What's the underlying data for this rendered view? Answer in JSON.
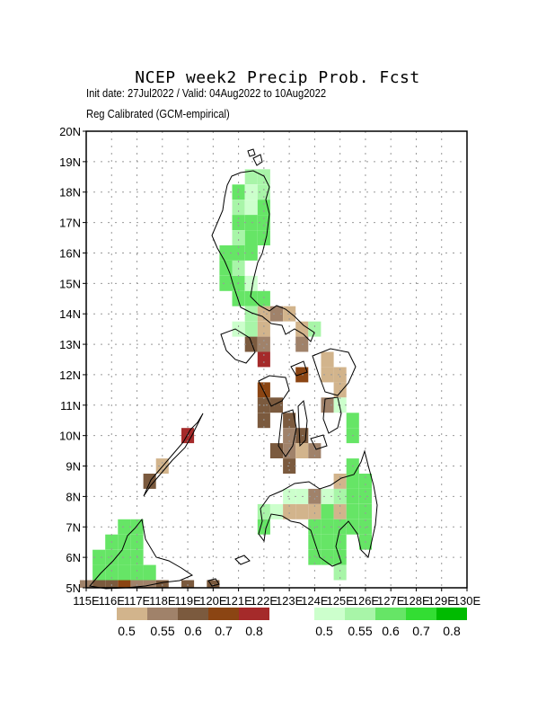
{
  "title": "NCEP week2 Precip Prob. Fcst",
  "subtitle1": "Init date: 27Jul2022 / Valid: 04Aug2022 to 10Aug2022",
  "subtitle2": "Reg Calibrated (GCM-empirical)",
  "axes": {
    "lat_labels": [
      "20N",
      "19N",
      "18N",
      "17N",
      "16N",
      "15N",
      "14N",
      "13N",
      "12N",
      "11N",
      "10N",
      "9N",
      "8N",
      "7N",
      "6N",
      "5N"
    ],
    "lon_labels": [
      "115E",
      "116E",
      "117E",
      "118E",
      "119E",
      "120E",
      "121E",
      "122E",
      "123E",
      "124E",
      "125E",
      "126E",
      "127E",
      "128E",
      "129E",
      "130E"
    ]
  },
  "legend_dry": {
    "colors": [
      "#d2b48c",
      "#a0826a",
      "#7b5a3e",
      "#8b4513",
      "#a52a2a"
    ],
    "labels": [
      "0.5",
      "0.55",
      "0.6",
      "0.7",
      "0.8"
    ]
  },
  "legend_wet": {
    "colors": [
      "#ccffcc",
      "#a8f5a8",
      "#66e566",
      "#33dd33",
      "#00bb00"
    ],
    "labels": [
      "0.5",
      "0.55",
      "0.6",
      "0.7",
      "0.8"
    ]
  },
  "map_cells": [
    {
      "lat": 18.5,
      "lon": 121.5,
      "cat": "wet",
      "level": 2
    },
    {
      "lat": 18.5,
      "lon": 122.0,
      "cat": "wet",
      "level": 2
    },
    {
      "lat": 18.0,
      "lon": 121.0,
      "cat": "wet",
      "level": 3
    },
    {
      "lat": 18.0,
      "lon": 121.5,
      "cat": "wet",
      "level": 1
    },
    {
      "lat": 18.0,
      "lon": 122.0,
      "cat": "wet",
      "level": 2
    },
    {
      "lat": 17.5,
      "lon": 121.0,
      "cat": "wet",
      "level": 2
    },
    {
      "lat": 17.5,
      "lon": 121.5,
      "cat": "wet",
      "level": 1
    },
    {
      "lat": 17.5,
      "lon": 122.0,
      "cat": "wet",
      "level": 3
    },
    {
      "lat": 17.0,
      "lon": 121.0,
      "cat": "wet",
      "level": 3
    },
    {
      "lat": 17.0,
      "lon": 121.5,
      "cat": "wet",
      "level": 3
    },
    {
      "lat": 17.0,
      "lon": 122.0,
      "cat": "wet",
      "level": 3
    },
    {
      "lat": 16.5,
      "lon": 121.0,
      "cat": "wet",
      "level": 2
    },
    {
      "lat": 16.5,
      "lon": 121.5,
      "cat": "wet",
      "level": 3
    },
    {
      "lat": 16.5,
      "lon": 122.0,
      "cat": "wet",
      "level": 3
    },
    {
      "lat": 16.0,
      "lon": 120.5,
      "cat": "wet",
      "level": 3
    },
    {
      "lat": 16.0,
      "lon": 121.0,
      "cat": "wet",
      "level": 3
    },
    {
      "lat": 16.0,
      "lon": 121.5,
      "cat": "wet",
      "level": 3
    },
    {
      "lat": 15.5,
      "lon": 120.5,
      "cat": "wet",
      "level": 3
    },
    {
      "lat": 15.5,
      "lon": 121.0,
      "cat": "wet",
      "level": 2
    },
    {
      "lat": 15.0,
      "lon": 120.5,
      "cat": "wet",
      "level": 3
    },
    {
      "lat": 15.0,
      "lon": 121.0,
      "cat": "wet",
      "level": 3
    },
    {
      "lat": 15.0,
      "lon": 121.5,
      "cat": "wet",
      "level": 1
    },
    {
      "lat": 14.5,
      "lon": 121.0,
      "cat": "wet",
      "level": 3
    },
    {
      "lat": 14.5,
      "lon": 121.5,
      "cat": "wet",
      "level": 3
    },
    {
      "lat": 14.5,
      "lon": 122.0,
      "cat": "wet",
      "level": 3
    },
    {
      "lat": 14.0,
      "lon": 121.5,
      "cat": "wet",
      "level": 2
    },
    {
      "lat": 14.0,
      "lon": 122.0,
      "cat": "dry",
      "level": 1
    },
    {
      "lat": 14.0,
      "lon": 122.5,
      "cat": "dry",
      "level": 2
    },
    {
      "lat": 14.0,
      "lon": 123.0,
      "cat": "dry",
      "level": 1
    },
    {
      "lat": 13.5,
      "lon": 121.0,
      "cat": "wet",
      "level": 1
    },
    {
      "lat": 13.5,
      "lon": 121.5,
      "cat": "wet",
      "level": 2
    },
    {
      "lat": 13.5,
      "lon": 122.0,
      "cat": "dry",
      "level": 1
    },
    {
      "lat": 13.5,
      "lon": 123.5,
      "cat": "dry",
      "level": 1
    },
    {
      "lat": 13.5,
      "lon": 124.0,
      "cat": "wet",
      "level": 2
    },
    {
      "lat": 13.0,
      "lon": 121.5,
      "cat": "dry",
      "level": 3
    },
    {
      "lat": 13.0,
      "lon": 122.0,
      "cat": "dry",
      "level": 2
    },
    {
      "lat": 13.0,
      "lon": 123.5,
      "cat": "dry",
      "level": 2
    },
    {
      "lat": 12.5,
      "lon": 122.0,
      "cat": "dry",
      "level": 5
    },
    {
      "lat": 12.5,
      "lon": 124.5,
      "cat": "dry",
      "level": 1
    },
    {
      "lat": 12.0,
      "lon": 123.5,
      "cat": "dry",
      "level": 4
    },
    {
      "lat": 12.0,
      "lon": 124.5,
      "cat": "dry",
      "level": 1
    },
    {
      "lat": 12.0,
      "lon": 125.0,
      "cat": "dry",
      "level": 1
    },
    {
      "lat": 11.5,
      "lon": 122.0,
      "cat": "dry",
      "level": 4
    },
    {
      "lat": 11.5,
      "lon": 125.0,
      "cat": "dry",
      "level": 1
    },
    {
      "lat": 11.0,
      "lon": 122.0,
      "cat": "dry",
      "level": 3
    },
    {
      "lat": 11.0,
      "lon": 122.5,
      "cat": "dry",
      "level": 3
    },
    {
      "lat": 11.0,
      "lon": 124.5,
      "cat": "dry",
      "level": 2
    },
    {
      "lat": 11.0,
      "lon": 125.0,
      "cat": "wet",
      "level": 1
    },
    {
      "lat": 10.5,
      "lon": 122.0,
      "cat": "dry",
      "level": 3
    },
    {
      "lat": 10.5,
      "lon": 123.0,
      "cat": "dry",
      "level": 3
    },
    {
      "lat": 10.5,
      "lon": 125.5,
      "cat": "wet",
      "level": 3
    },
    {
      "lat": 10.0,
      "lon": 119.0,
      "cat": "dry",
      "level": 5
    },
    {
      "lat": 10.0,
      "lon": 123.0,
      "cat": "dry",
      "level": 2
    },
    {
      "lat": 10.0,
      "lon": 123.5,
      "cat": "dry",
      "level": 3
    },
    {
      "lat": 10.0,
      "lon": 125.5,
      "cat": "wet",
      "level": 3
    },
    {
      "lat": 9.5,
      "lon": 122.5,
      "cat": "dry",
      "level": 3
    },
    {
      "lat": 9.5,
      "lon": 123.0,
      "cat": "dry",
      "level": 2
    },
    {
      "lat": 9.5,
      "lon": 123.5,
      "cat": "dry",
      "level": 1
    },
    {
      "lat": 9.5,
      "lon": 124.0,
      "cat": "dry",
      "level": 2
    },
    {
      "lat": 9.0,
      "lon": 118.0,
      "cat": "dry",
      "level": 1
    },
    {
      "lat": 9.0,
      "lon": 123.0,
      "cat": "dry",
      "level": 3
    },
    {
      "lat": 9.0,
      "lon": 125.5,
      "cat": "wet",
      "level": 3
    },
    {
      "lat": 8.5,
      "lon": 117.5,
      "cat": "dry",
      "level": 3
    },
    {
      "lat": 8.5,
      "lon": 125.0,
      "cat": "dry",
      "level": 1
    },
    {
      "lat": 8.5,
      "lon": 125.5,
      "cat": "wet",
      "level": 3
    },
    {
      "lat": 8.5,
      "lon": 126.0,
      "cat": "wet",
      "level": 3
    },
    {
      "lat": 8.0,
      "lon": 123.0,
      "cat": "wet",
      "level": 1
    },
    {
      "lat": 8.0,
      "lon": 123.5,
      "cat": "wet",
      "level": 1
    },
    {
      "lat": 8.0,
      "lon": 124.0,
      "cat": "dry",
      "level": 2
    },
    {
      "lat": 8.0,
      "lon": 124.5,
      "cat": "wet",
      "level": 1
    },
    {
      "lat": 8.0,
      "lon": 125.0,
      "cat": "wet",
      "level": 2
    },
    {
      "lat": 8.0,
      "lon": 125.5,
      "cat": "wet",
      "level": 3
    },
    {
      "lat": 8.0,
      "lon": 126.0,
      "cat": "wet",
      "level": 3
    },
    {
      "lat": 7.5,
      "lon": 122.0,
      "cat": "wet",
      "level": 2
    },
    {
      "lat": 7.5,
      "lon": 122.5,
      "cat": "wet",
      "level": 1
    },
    {
      "lat": 7.5,
      "lon": 123.0,
      "cat": "dry",
      "level": 1
    },
    {
      "lat": 7.5,
      "lon": 123.5,
      "cat": "dry",
      "level": 1
    },
    {
      "lat": 7.5,
      "lon": 124.0,
      "cat": "dry",
      "level": 1
    },
    {
      "lat": 7.5,
      "lon": 124.5,
      "cat": "wet",
      "level": 3
    },
    {
      "lat": 7.5,
      "lon": 125.0,
      "cat": "dry",
      "level": 1
    },
    {
      "lat": 7.5,
      "lon": 125.5,
      "cat": "wet",
      "level": 3
    },
    {
      "lat": 7.5,
      "lon": 126.0,
      "cat": "wet",
      "level": 3
    },
    {
      "lat": 7.0,
      "lon": 122.0,
      "cat": "wet",
      "level": 3
    },
    {
      "lat": 7.0,
      "lon": 124.0,
      "cat": "wet",
      "level": 3
    },
    {
      "lat": 7.0,
      "lon": 124.5,
      "cat": "wet",
      "level": 3
    },
    {
      "lat": 7.0,
      "lon": 125.0,
      "cat": "wet",
      "level": 3
    },
    {
      "lat": 7.0,
      "lon": 125.5,
      "cat": "wet",
      "level": 3
    },
    {
      "lat": 7.0,
      "lon": 126.0,
      "cat": "wet",
      "level": 3
    },
    {
      "lat": 6.5,
      "lon": 124.0,
      "cat": "wet",
      "level": 3
    },
    {
      "lat": 6.5,
      "lon": 124.5,
      "cat": "wet",
      "level": 3
    },
    {
      "lat": 6.5,
      "lon": 125.0,
      "cat": "wet",
      "level": 3
    },
    {
      "lat": 6.5,
      "lon": 126.0,
      "cat": "wet",
      "level": 3
    },
    {
      "lat": 6.0,
      "lon": 124.0,
      "cat": "wet",
      "level": 3
    },
    {
      "lat": 6.0,
      "lon": 124.5,
      "cat": "wet",
      "level": 3
    },
    {
      "lat": 6.0,
      "lon": 125.0,
      "cat": "wet",
      "level": 3
    },
    {
      "lat": 5.5,
      "lon": 125.0,
      "cat": "wet",
      "level": 2
    },
    {
      "lat": 7.0,
      "lon": 116.5,
      "cat": "wet",
      "level": 3
    },
    {
      "lat": 7.0,
      "lon": 117.0,
      "cat": "wet",
      "level": 3
    },
    {
      "lat": 6.5,
      "lon": 116.0,
      "cat": "wet",
      "level": 3
    },
    {
      "lat": 6.5,
      "lon": 116.5,
      "cat": "wet",
      "level": 3
    },
    {
      "lat": 6.5,
      "lon": 117.0,
      "cat": "wet",
      "level": 3
    },
    {
      "lat": 6.0,
      "lon": 115.5,
      "cat": "wet",
      "level": 3
    },
    {
      "lat": 6.0,
      "lon": 116.0,
      "cat": "wet",
      "level": 3
    },
    {
      "lat": 6.0,
      "lon": 116.5,
      "cat": "wet",
      "level": 3
    },
    {
      "lat": 6.0,
      "lon": 117.0,
      "cat": "wet",
      "level": 3
    },
    {
      "lat": 5.5,
      "lon": 115.5,
      "cat": "wet",
      "level": 3
    },
    {
      "lat": 5.5,
      "lon": 116.0,
      "cat": "wet",
      "level": 3
    },
    {
      "lat": 5.5,
      "lon": 116.5,
      "cat": "wet",
      "level": 3
    },
    {
      "lat": 5.5,
      "lon": 117.0,
      "cat": "wet",
      "level": 3
    },
    {
      "lat": 5.5,
      "lon": 117.5,
      "cat": "wet",
      "level": 3
    },
    {
      "lat": 5.0,
      "lon": 115.0,
      "cat": "dry",
      "level": 2
    },
    {
      "lat": 5.0,
      "lon": 115.5,
      "cat": "dry",
      "level": 3
    },
    {
      "lat": 5.0,
      "lon": 116.0,
      "cat": "dry",
      "level": 3
    },
    {
      "lat": 5.0,
      "lon": 116.5,
      "cat": "dry",
      "level": 4
    },
    {
      "lat": 5.0,
      "lon": 117.0,
      "cat": "dry",
      "level": 2
    },
    {
      "lat": 5.0,
      "lon": 117.5,
      "cat": "dry",
      "level": 2
    },
    {
      "lat": 5.0,
      "lon": 118.0,
      "cat": "dry",
      "level": 3
    },
    {
      "lat": 5.0,
      "lon": 119.0,
      "cat": "dry",
      "level": 3
    },
    {
      "lat": 5.0,
      "lon": 120.0,
      "cat": "dry",
      "level": 3
    }
  ]
}
